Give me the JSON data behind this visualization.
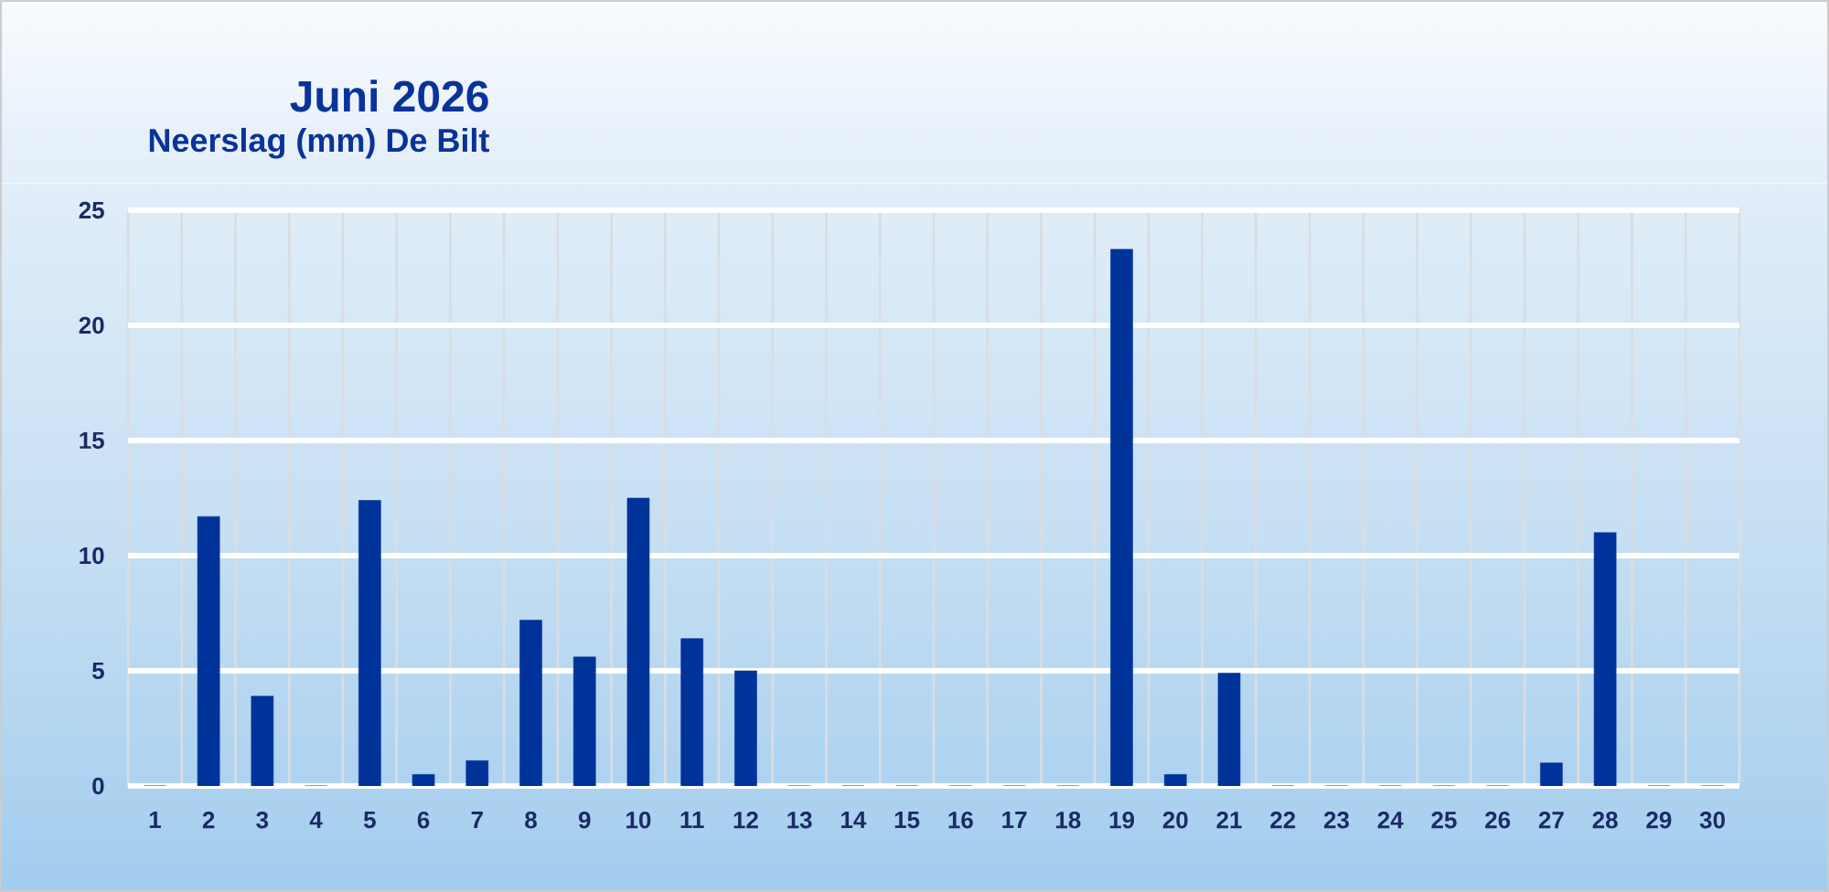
{
  "chart_data": {
    "type": "bar",
    "title": "Juni 2026",
    "subtitle": "Neerslag (mm) De Bilt",
    "categories": [
      "1",
      "2",
      "3",
      "4",
      "5",
      "6",
      "7",
      "8",
      "9",
      "10",
      "11",
      "12",
      "13",
      "14",
      "15",
      "16",
      "17",
      "18",
      "19",
      "20",
      "21",
      "22",
      "23",
      "24",
      "25",
      "26",
      "27",
      "28",
      "29",
      "30"
    ],
    "values": [
      0,
      11.7,
      3.9,
      0,
      12.4,
      0.5,
      1.1,
      7.2,
      5.6,
      12.5,
      6.4,
      5.0,
      0,
      0,
      0,
      0,
      0,
      0,
      23.3,
      0.5,
      4.9,
      0,
      0,
      0,
      0,
      0,
      1.0,
      11.0,
      0,
      0
    ],
    "color": "#003399",
    "ylim": [
      0,
      25
    ],
    "yticks": [
      0,
      5,
      10,
      15,
      20,
      25
    ],
    "grid": true
  }
}
